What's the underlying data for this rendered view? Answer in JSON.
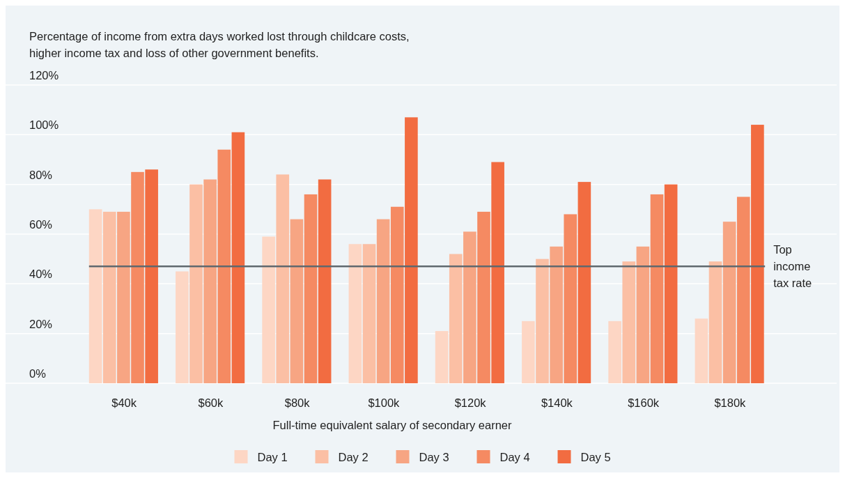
{
  "chart_data": {
    "type": "bar",
    "title": "Percentage of income from extra days worked lost through childcare costs, higher income tax and loss of other government benefits.",
    "xlabel": "Full-time equivalent salary of secondary earner",
    "categories": [
      "$40k",
      "$60k",
      "$80k",
      "$100k",
      "$120k",
      "$140k",
      "$160k",
      "$180k"
    ],
    "series": [
      {
        "name": "Day 1",
        "color": "#fdd6c4",
        "values": [
          70,
          45,
          59,
          56,
          21,
          25,
          25,
          26
        ]
      },
      {
        "name": "Day 2",
        "color": "#fbbfa4",
        "values": [
          69,
          80,
          84,
          56,
          52,
          50,
          49,
          49
        ]
      },
      {
        "name": "Day 3",
        "color": "#f7a583",
        "values": [
          69,
          82,
          66,
          66,
          61,
          55,
          55,
          65
        ]
      },
      {
        "name": "Day 4",
        "color": "#f58a62",
        "values": [
          85,
          94,
          76,
          71,
          69,
          68,
          76,
          75
        ]
      },
      {
        "name": "Day 5",
        "color": "#f26c41",
        "values": [
          86,
          101,
          82,
          107,
          89,
          81,
          80,
          104
        ]
      }
    ],
    "ylim": [
      0,
      120
    ],
    "yticks": [
      {
        "value": 0,
        "label": "0%"
      },
      {
        "value": 20,
        "label": "20%"
      },
      {
        "value": 40,
        "label": "40%"
      },
      {
        "value": 60,
        "label": "60%"
      },
      {
        "value": 80,
        "label": "80%"
      },
      {
        "value": 100,
        "label": "100%"
      },
      {
        "value": 120,
        "label": "120%"
      }
    ],
    "grid": "y",
    "legend": "bottom",
    "ref_lines": [
      {
        "axis": "y",
        "value": 47,
        "label": "Top income tax rate",
        "color": "#5f686e"
      }
    ]
  }
}
